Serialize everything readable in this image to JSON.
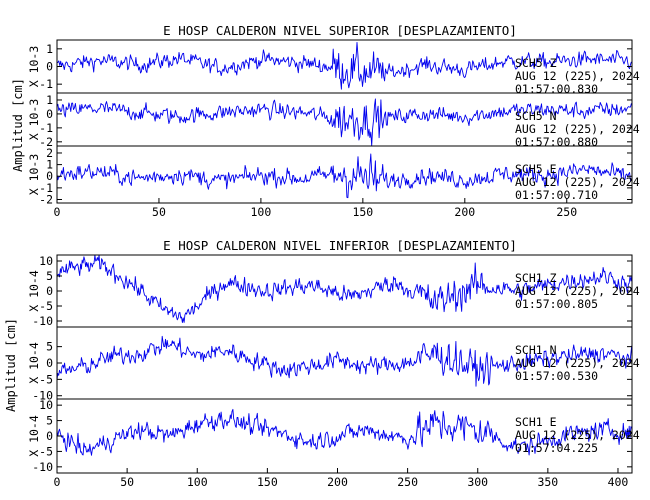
{
  "chart_data": [
    {
      "type": "line",
      "title": "E HOSP CALDERON NIVEL SUPERIOR [DESPLAZAMIENTO]",
      "ylabel": "Amplitud [cm]",
      "xlim": [
        0,
        282
      ],
      "xticks": [
        0,
        50,
        100,
        150,
        200,
        250
      ],
      "line_color": "#0000ee",
      "panels": [
        {
          "scale_label": "X 10-3",
          "ylim": [
            -1.5,
            1.5
          ],
          "yticks": [
            -1,
            0,
            1
          ],
          "channel": "SCH5 Z",
          "date": "AUG 12 (225), 2024",
          "time": "01:57:00.830",
          "series": [
            {
              "x": 0,
              "y": 0.0
            },
            {
              "x": 20,
              "y": 0.35
            },
            {
              "x": 40,
              "y": 0.1
            },
            {
              "x": 60,
              "y": 0.45
            },
            {
              "x": 80,
              "y": -0.1
            },
            {
              "x": 100,
              "y": 0.4
            },
            {
              "x": 120,
              "y": 0.2
            },
            {
              "x": 140,
              "y": -0.1
            },
            {
              "x": 160,
              "y": -0.45
            },
            {
              "x": 180,
              "y": 0.1
            },
            {
              "x": 200,
              "y": -0.2
            },
            {
              "x": 220,
              "y": 0.3
            },
            {
              "x": 240,
              "y": 0.25
            },
            {
              "x": 260,
              "y": 0.4
            },
            {
              "x": 282,
              "y": 0.3
            }
          ]
        },
        {
          "scale_label": "X 10-3",
          "ylim": [
            -2.3,
            1.5
          ],
          "yticks": [
            -2,
            -1,
            0,
            1
          ],
          "channel": "SCH5 N",
          "date": "AUG 12 (225), 2024",
          "time": "01:57:00.880",
          "series": [
            {
              "x": 0,
              "y": 0.2
            },
            {
              "x": 20,
              "y": 0.4
            },
            {
              "x": 40,
              "y": 0.1
            },
            {
              "x": 60,
              "y": -0.2
            },
            {
              "x": 80,
              "y": 0.1
            },
            {
              "x": 100,
              "y": 0.3
            },
            {
              "x": 120,
              "y": 0.1
            },
            {
              "x": 140,
              "y": -0.4
            },
            {
              "x": 160,
              "y": -0.3
            },
            {
              "x": 180,
              "y": 0.0
            },
            {
              "x": 200,
              "y": -0.2
            },
            {
              "x": 220,
              "y": 0.2
            },
            {
              "x": 240,
              "y": 0.3
            },
            {
              "x": 260,
              "y": 0.2
            },
            {
              "x": 282,
              "y": 0.4
            }
          ]
        },
        {
          "scale_label": "X 10-3",
          "ylim": [
            -2.3,
            2.6
          ],
          "yticks": [
            -2,
            -1,
            0,
            1,
            2
          ],
          "channel": "SCH5 E",
          "date": "AUG 12 (225), 2024",
          "time": "01:57:00.710",
          "series": [
            {
              "x": 0,
              "y": 0.2
            },
            {
              "x": 20,
              "y": 0.4
            },
            {
              "x": 40,
              "y": -0.2
            },
            {
              "x": 60,
              "y": 0.2
            },
            {
              "x": 80,
              "y": -0.4
            },
            {
              "x": 100,
              "y": 0.1
            },
            {
              "x": 120,
              "y": -0.2
            },
            {
              "x": 140,
              "y": 0.3
            },
            {
              "x": 160,
              "y": -0.5
            },
            {
              "x": 180,
              "y": 0.1
            },
            {
              "x": 200,
              "y": -0.3
            },
            {
              "x": 220,
              "y": 0.2
            },
            {
              "x": 240,
              "y": 0.1
            },
            {
              "x": 260,
              "y": 0.6
            },
            {
              "x": 282,
              "y": -0.1
            }
          ]
        }
      ]
    },
    {
      "type": "line",
      "title": "E HOSP CALDERON NIVEL INFERIOR [DESPLAZAMIENTO]",
      "ylabel": "Amplitud [cm]",
      "xlim": [
        0,
        410
      ],
      "xticks": [
        0,
        50,
        100,
        150,
        200,
        250,
        300,
        350,
        400
      ],
      "line_color": "#0000ee",
      "panels": [
        {
          "scale_label": "X 10-4",
          "ylim": [
            -12,
            12
          ],
          "yticks": [
            -10,
            -5,
            0,
            5,
            10
          ],
          "channel": "SCH1 Z",
          "date": "AUG 12 (225), 2024",
          "time": "01:57:00.805",
          "series": [
            {
              "x": 0,
              "y": 6
            },
            {
              "x": 15,
              "y": 8
            },
            {
              "x": 30,
              "y": 9
            },
            {
              "x": 45,
              "y": 5
            },
            {
              "x": 60,
              "y": 0
            },
            {
              "x": 75,
              "y": -6
            },
            {
              "x": 90,
              "y": -9
            },
            {
              "x": 105,
              "y": -3
            },
            {
              "x": 120,
              "y": 3
            },
            {
              "x": 150,
              "y": 0
            },
            {
              "x": 180,
              "y": 2
            },
            {
              "x": 210,
              "y": -2
            },
            {
              "x": 240,
              "y": 3
            },
            {
              "x": 270,
              "y": -4
            },
            {
              "x": 300,
              "y": 2
            },
            {
              "x": 330,
              "y": 0
            },
            {
              "x": 360,
              "y": 3
            },
            {
              "x": 390,
              "y": 5
            },
            {
              "x": 410,
              "y": 2
            }
          ]
        },
        {
          "scale_label": "X 10-4",
          "ylim": [
            -11,
            11
          ],
          "yticks": [
            -10,
            -5,
            0,
            5
          ],
          "channel": "SCH1 N",
          "date": "AUG 12 (225), 2024",
          "time": "01:57:00.530",
          "series": [
            {
              "x": 0,
              "y": -3
            },
            {
              "x": 20,
              "y": -1
            },
            {
              "x": 40,
              "y": 2
            },
            {
              "x": 60,
              "y": 3
            },
            {
              "x": 80,
              "y": 6
            },
            {
              "x": 100,
              "y": 2
            },
            {
              "x": 120,
              "y": 4
            },
            {
              "x": 140,
              "y": 1
            },
            {
              "x": 160,
              "y": -2
            },
            {
              "x": 180,
              "y": -1
            },
            {
              "x": 200,
              "y": 1
            },
            {
              "x": 220,
              "y": -1
            },
            {
              "x": 250,
              "y": 0
            },
            {
              "x": 270,
              "y": 3
            },
            {
              "x": 300,
              "y": -2
            },
            {
              "x": 330,
              "y": 0
            },
            {
              "x": 360,
              "y": 2
            },
            {
              "x": 390,
              "y": 3
            },
            {
              "x": 410,
              "y": 1
            }
          ]
        },
        {
          "scale_label": "X 10-4",
          "ylim": [
            -12,
            12
          ],
          "yticks": [
            -10,
            -5,
            0,
            5,
            10
          ],
          "channel": "SCH1 E",
          "date": "AUG 12 (225), 2024",
          "time": "01:57:04.225",
          "series": [
            {
              "x": 0,
              "y": 1
            },
            {
              "x": 20,
              "y": -5
            },
            {
              "x": 40,
              "y": -1
            },
            {
              "x": 60,
              "y": 2
            },
            {
              "x": 80,
              "y": 0
            },
            {
              "x": 100,
              "y": 4
            },
            {
              "x": 120,
              "y": 6
            },
            {
              "x": 140,
              "y": 3
            },
            {
              "x": 160,
              "y": 1
            },
            {
              "x": 180,
              "y": -2
            },
            {
              "x": 200,
              "y": 0
            },
            {
              "x": 220,
              "y": 2
            },
            {
              "x": 250,
              "y": -1
            },
            {
              "x": 270,
              "y": 4
            },
            {
              "x": 300,
              "y": 2
            },
            {
              "x": 330,
              "y": -4
            },
            {
              "x": 360,
              "y": 0
            },
            {
              "x": 390,
              "y": 2
            },
            {
              "x": 410,
              "y": 1
            }
          ]
        }
      ]
    }
  ]
}
